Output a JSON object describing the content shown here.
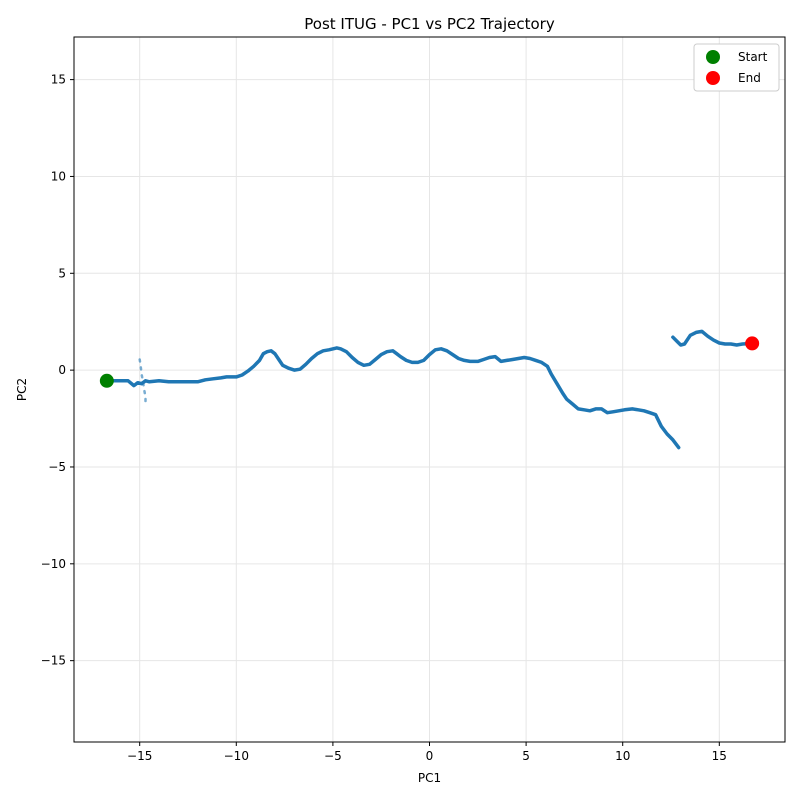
{
  "chart_data": {
    "type": "line",
    "title": "Post ITUG - PC1 vs PC2 Trajectory",
    "xlabel": "PC1",
    "ylabel": "PC2",
    "xlim": [
      -18.4,
      18.4
    ],
    "ylim": [
      -19.2,
      17.2
    ],
    "xticks": [
      -15,
      -10,
      -5,
      0,
      5,
      10,
      15
    ],
    "yticks": [
      -15,
      -10,
      -5,
      0,
      5,
      10,
      15
    ],
    "xtick_labels": [
      "−15",
      "−10",
      "−5",
      "0",
      "5",
      "10",
      "15"
    ],
    "ytick_labels": [
      "−15",
      "−10",
      "−5",
      "0",
      "5",
      "10",
      "15"
    ],
    "grid": true,
    "legend_position": "top-right",
    "colors": {
      "trajectory": "#1f77b4",
      "start": "#008000",
      "end": "#ff0000",
      "grid": "#e6e6e6"
    },
    "series": [
      {
        "x": [
          -16.7,
          -16.2,
          -15.6,
          -15.3,
          -15.1,
          -14.9,
          -14.7,
          -14.5,
          -14.0,
          -13.5,
          -13.0,
          -12.5,
          -12.0,
          -11.6,
          -11.2,
          -10.8,
          -10.5,
          -10.0,
          -9.7,
          -9.4,
          -9.1,
          -8.8,
          -8.6,
          -8.4,
          -8.2,
          -8.0,
          -7.8,
          -7.6,
          -7.3,
          -7.0,
          -6.7,
          -6.4,
          -6.1,
          -5.8,
          -5.5,
          -5.2,
          -4.8,
          -4.6,
          -4.3,
          -4.0,
          -3.7,
          -3.4,
          -3.1,
          -2.8,
          -2.5,
          -2.2,
          -1.9,
          -1.7,
          -1.5,
          -1.2,
          -0.9,
          -0.6,
          -0.3,
          0.0,
          0.3,
          0.6,
          0.9,
          1.2,
          1.5,
          1.8,
          2.1,
          2.5,
          2.8,
          3.1,
          3.4,
          3.7,
          4.0,
          4.3,
          4.6,
          4.9,
          5.2,
          5.5,
          5.8,
          6.1,
          6.3,
          6.6,
          6.9,
          7.1,
          7.4,
          7.7,
          8.0,
          8.3,
          8.6,
          8.9,
          9.2,
          9.5,
          9.8,
          10.1,
          10.5,
          10.8,
          11.1,
          11.4,
          11.7,
          12.0,
          12.3,
          12.6,
          12.9
        ],
        "y": [
          -0.55,
          -0.55,
          -0.55,
          -0.8,
          -0.65,
          -0.7,
          -0.55,
          -0.6,
          -0.55,
          -0.6,
          -0.6,
          -0.6,
          -0.6,
          -0.5,
          -0.45,
          -0.4,
          -0.35,
          -0.35,
          -0.25,
          -0.05,
          0.2,
          0.5,
          0.85,
          0.95,
          1.0,
          0.85,
          0.55,
          0.25,
          0.1,
          0.0,
          0.05,
          0.3,
          0.6,
          0.85,
          1.0,
          1.05,
          1.15,
          1.1,
          0.95,
          0.65,
          0.4,
          0.25,
          0.3,
          0.55,
          0.8,
          0.95,
          1.0,
          0.85,
          0.7,
          0.5,
          0.4,
          0.4,
          0.5,
          0.8,
          1.05,
          1.1,
          1.0,
          0.8,
          0.6,
          0.5,
          0.45,
          0.45,
          0.55,
          0.65,
          0.7,
          0.45,
          0.5,
          0.55,
          0.6,
          0.65,
          0.6,
          0.5,
          0.4,
          0.2,
          -0.2,
          -0.7,
          -1.2,
          -1.5,
          -1.75,
          -2.0,
          -2.05,
          -2.1,
          -2.0,
          -2.0,
          -2.2,
          -2.15,
          -2.1,
          -2.05,
          -2.0,
          -2.05,
          -2.1,
          -2.2,
          -2.3,
          -2.9,
          -3.3,
          -3.6,
          -4.0
        ]
      },
      {
        "x": [
          12.6,
          12.8,
          13.0,
          13.2,
          13.5,
          13.8,
          14.1,
          14.4,
          14.7,
          15.0,
          15.3,
          15.6,
          15.9,
          16.2,
          16.7
        ],
        "y": [
          1.7,
          1.5,
          1.3,
          1.35,
          1.8,
          1.95,
          2.0,
          1.75,
          1.55,
          1.4,
          1.35,
          1.35,
          1.3,
          1.35,
          1.38
        ]
      },
      {
        "x": [
          -15.0,
          -14.95,
          -14.9,
          -14.85,
          -14.8,
          -14.75,
          -14.7,
          -14.7,
          -14.65,
          -14.6
        ],
        "y": [
          0.55,
          0.2,
          -0.2,
          -0.5,
          -0.8,
          -1.1,
          -1.4,
          -1.65,
          -1.65,
          -1.65
        ]
      }
    ],
    "markers": [
      {
        "label": "Start",
        "x": -16.7,
        "y": -0.55
      },
      {
        "label": "End",
        "x": 16.7,
        "y": 1.38
      }
    ]
  }
}
